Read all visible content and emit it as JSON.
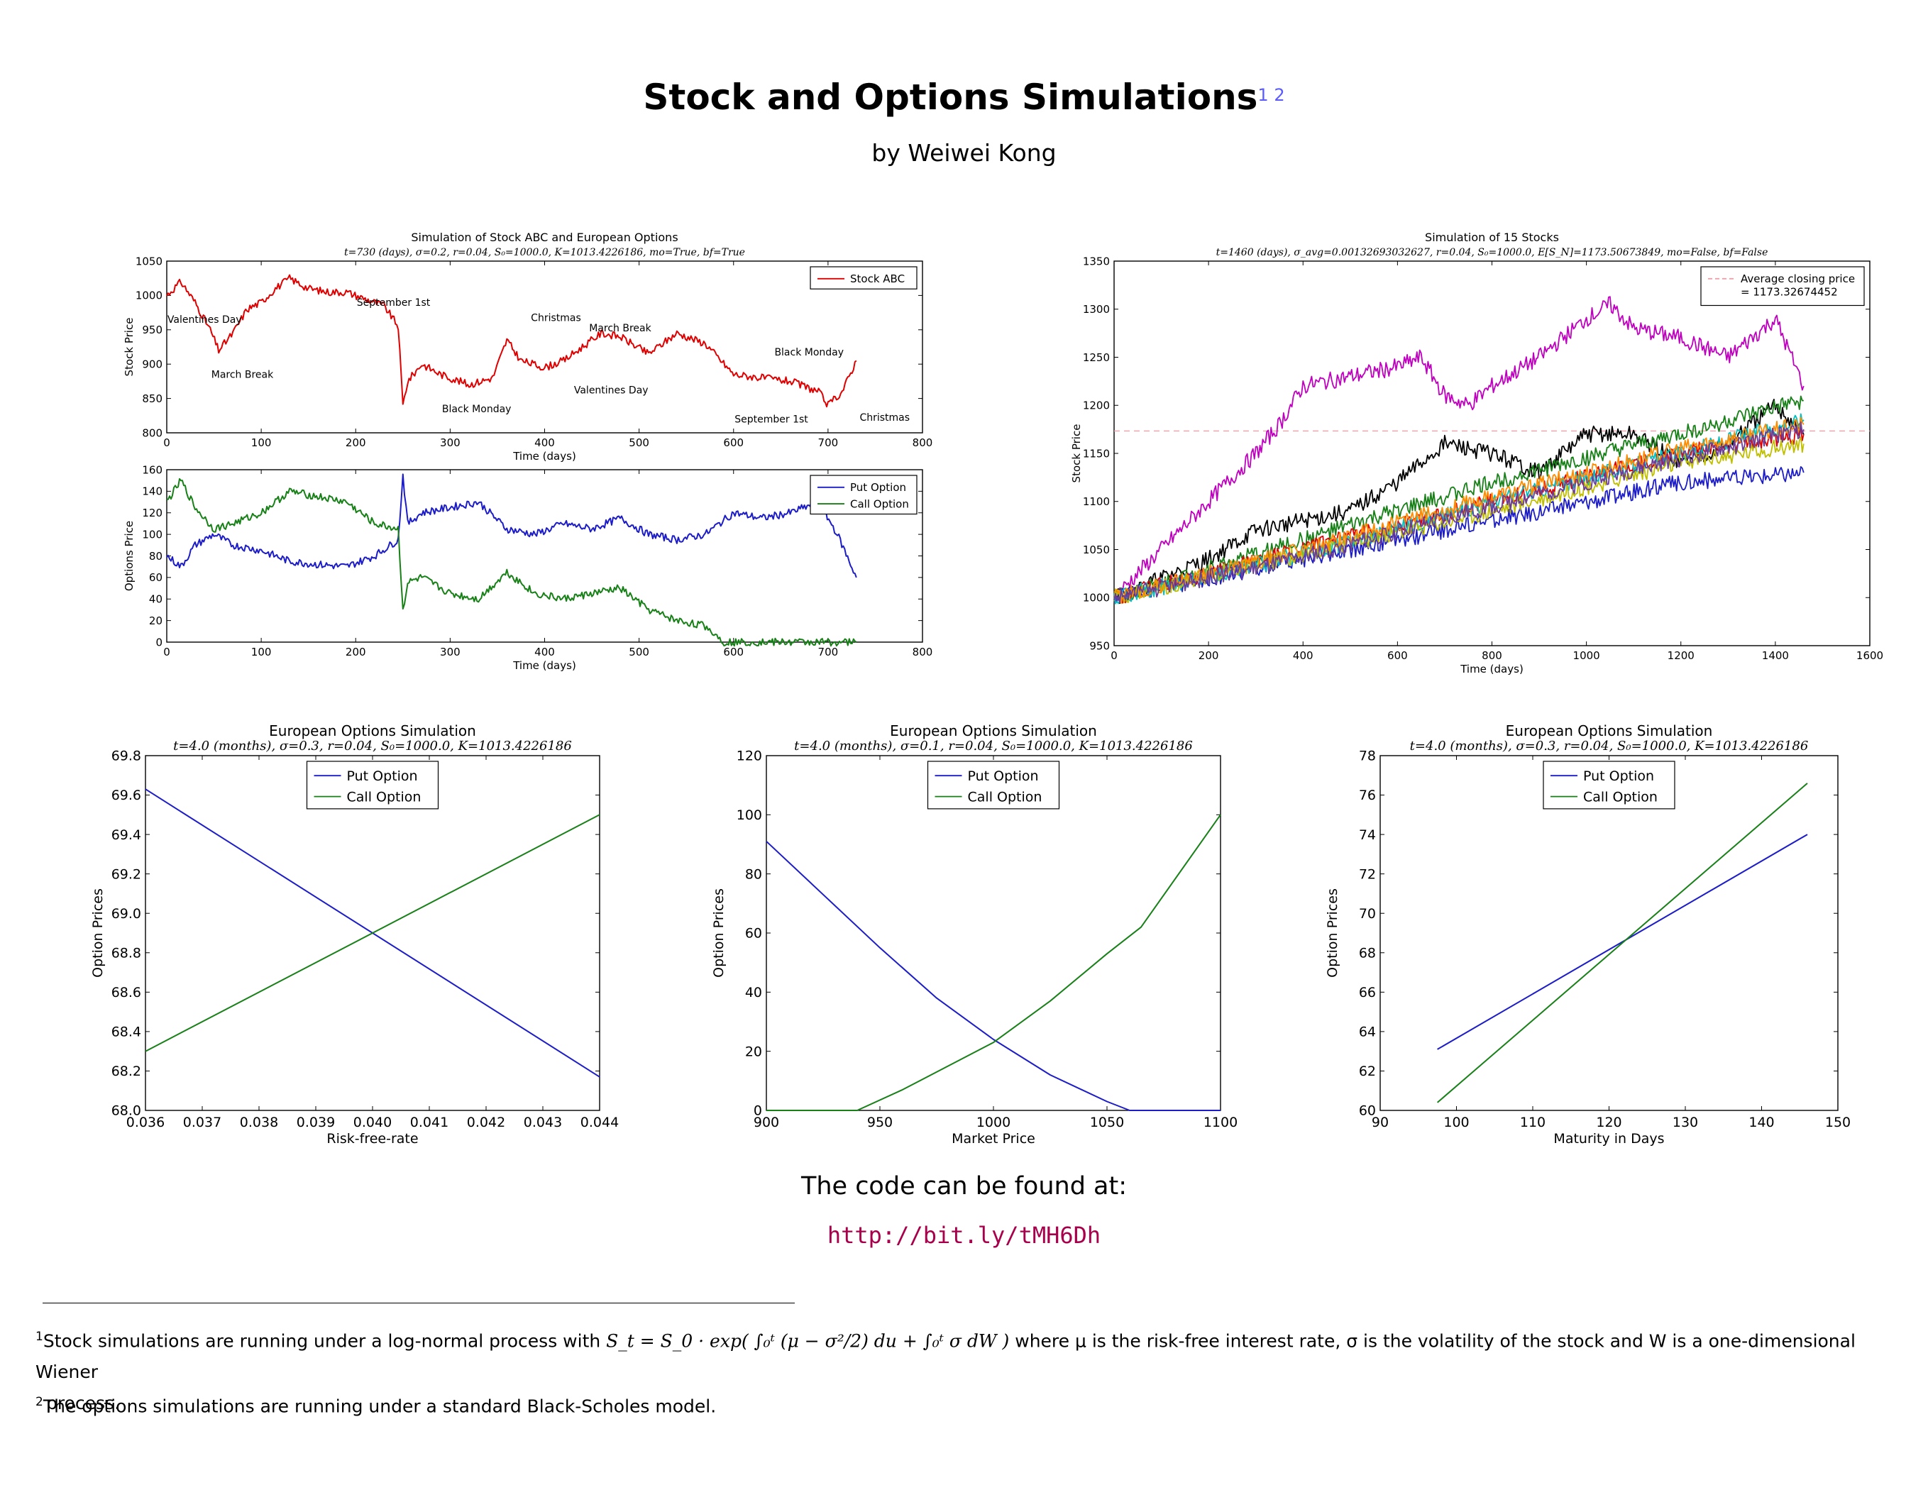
{
  "header": {
    "title": "Stock and Options Simulations",
    "title_footnote_marks": "1 2",
    "author": "by Weiwei Kong"
  },
  "footer": {
    "code_intro": "The code can be found at:",
    "code_url": "http://bit.ly/tMH6Dh",
    "footnote1_mark": "1",
    "footnote1_text_a": "Stock simulations are running under a log-normal process with",
    "footnote1_formula": "S_t = S_0 · exp( ∫₀ᵗ (μ − σ²/2) du + ∫₀ᵗ σ dW )",
    "footnote1_text_b": "where μ is the risk-free interest rate, σ is the volatility of the stock and W is a one-dimensional Wiener",
    "footnote1_text_c": "process.",
    "footnote2_mark": "2",
    "footnote2_text": "The options simulations are running under a standard Black-Scholes model."
  },
  "chart_data": [
    {
      "type": "line",
      "title": "Simulation of Stock ABC and European Options",
      "subtitle": "t=730 (days), σ=0.2, r=0.04, S₀=1000.0, K=1013.4226186, mo=True, bf=True",
      "xlabel": "Time (days)",
      "ylabel": "Stock Price",
      "xlim": [
        0,
        800
      ],
      "ylim": [
        800,
        1050
      ],
      "xticks": [
        "0",
        "100",
        "200",
        "300",
        "400",
        "500",
        "600",
        "700",
        "800"
      ],
      "yticks": [
        "800",
        "850",
        "900",
        "950",
        "1000",
        "1050"
      ],
      "legend_position": "top-right",
      "series": [
        {
          "name": "Stock ABC",
          "color": "#e00000",
          "x": [
            0,
            15,
            30,
            46,
            55,
            70,
            85,
            100,
            115,
            130,
            150,
            170,
            190,
            210,
            230,
            245,
            250,
            255,
            270,
            290,
            320,
            345,
            360,
            375,
            400,
            420,
            440,
            460,
            480,
            510,
            540,
            570,
            600,
            630,
            660,
            690,
            700,
            715,
            730
          ],
          "values": [
            1000,
            1020,
            990,
            950,
            920,
            945,
            980,
            990,
            1010,
            1025,
            1010,
            1005,
            1005,
            995,
            985,
            955,
            840,
            875,
            900,
            885,
            870,
            880,
            935,
            905,
            895,
            905,
            925,
            945,
            940,
            915,
            945,
            930,
            885,
            880,
            875,
            860,
            840,
            860,
            905
          ]
        }
      ],
      "annotations": [
        "Valentines Day",
        "March Break",
        "September 1st",
        "Christmas",
        "March Break",
        "Valentines Day",
        "Black Monday",
        "Black Monday",
        "September 1st",
        "Christmas"
      ]
    },
    {
      "type": "line",
      "xlabel": "Time (days)",
      "ylabel": "Options Price",
      "xlim": [
        0,
        800
      ],
      "ylim": [
        0,
        160
      ],
      "xticks": [
        "0",
        "100",
        "200",
        "300",
        "400",
        "500",
        "600",
        "700",
        "800"
      ],
      "yticks": [
        "0",
        "20",
        "40",
        "60",
        "80",
        "100",
        "120",
        "140",
        "160"
      ],
      "legend_position": "top-right",
      "series": [
        {
          "name": "Put Option",
          "color": "#1c1cc8",
          "x": [
            0,
            15,
            30,
            50,
            70,
            100,
            130,
            160,
            190,
            220,
            245,
            250,
            255,
            270,
            300,
            330,
            360,
            390,
            420,
            450,
            480,
            510,
            540,
            570,
            600,
            630,
            660,
            690,
            710,
            730
          ],
          "values": [
            80,
            70,
            90,
            100,
            90,
            85,
            75,
            72,
            70,
            80,
            95,
            155,
            110,
            120,
            125,
            130,
            105,
            100,
            110,
            105,
            115,
            100,
            95,
            100,
            120,
            115,
            120,
            130,
            100,
            60
          ]
        },
        {
          "name": "Call Option",
          "color": "#178017",
          "x": [
            0,
            15,
            30,
            50,
            70,
            100,
            130,
            160,
            190,
            220,
            245,
            250,
            255,
            270,
            300,
            330,
            360,
            390,
            420,
            450,
            480,
            510,
            540,
            570,
            590,
            610,
            650,
            700,
            730
          ],
          "values": [
            130,
            150,
            125,
            105,
            110,
            120,
            140,
            135,
            130,
            110,
            105,
            30,
            55,
            60,
            45,
            40,
            65,
            45,
            40,
            45,
            50,
            30,
            20,
            15,
            0,
            0,
            0,
            0,
            0
          ]
        }
      ]
    },
    {
      "type": "line",
      "title": "Simulation of 15 Stocks",
      "subtitle": "t=1460 (days), σ_avg=0.00132693032627, r=0.04, S₀=1000.0, E[S_N]=1173.50673849, mo=False, bf=False",
      "xlabel": "Time (days)",
      "ylabel": "Stock Price",
      "xlim": [
        0,
        1600
      ],
      "ylim": [
        950,
        1350
      ],
      "xticks": [
        "0",
        "200",
        "400",
        "600",
        "800",
        "1000",
        "1200",
        "1400",
        "1600"
      ],
      "yticks": [
        "950",
        "1000",
        "1050",
        "1100",
        "1150",
        "1200",
        "1250",
        "1300",
        "1350"
      ],
      "legend_position": "top-right",
      "reference_line": {
        "name": "Average closing price = 1173.32674452",
        "value": 1173.32674452
      },
      "series": [
        {
          "color": "#bf00bf",
          "x": [
            0,
            100,
            200,
            300,
            350,
            400,
            500,
            600,
            650,
            700,
            750,
            800,
            900,
            1000,
            1050,
            1100,
            1200,
            1300,
            1350,
            1400,
            1460
          ],
          "values": [
            1000,
            1050,
            1100,
            1150,
            1180,
            1220,
            1230,
            1240,
            1250,
            1210,
            1200,
            1220,
            1250,
            1290,
            1305,
            1280,
            1270,
            1250,
            1270,
            1290,
            1220
          ]
        },
        {
          "color": "#000000",
          "x": [
            0,
            200,
            300,
            400,
            500,
            600,
            700,
            800,
            900,
            1000,
            1100,
            1200,
            1300,
            1400,
            1460
          ],
          "values": [
            1000,
            1040,
            1070,
            1080,
            1090,
            1120,
            1160,
            1150,
            1130,
            1170,
            1170,
            1140,
            1160,
            1200,
            1170
          ]
        },
        {
          "color": "#178017",
          "x": [
            0,
            400,
            800,
            1200,
            1460
          ],
          "values": [
            1000,
            1060,
            1120,
            1170,
            1205
          ]
        },
        {
          "color": "#e00000",
          "x": [
            0,
            400,
            800,
            1200,
            1460
          ],
          "values": [
            1000,
            1050,
            1100,
            1150,
            1170
          ]
        },
        {
          "color": "#1c1cc8",
          "x": [
            0,
            400,
            800,
            1200,
            1460
          ],
          "values": [
            1000,
            1040,
            1080,
            1120,
            1130
          ]
        },
        {
          "color": "#00bfbf",
          "x": [
            0,
            400,
            800,
            1200,
            1460
          ],
          "values": [
            1000,
            1045,
            1100,
            1150,
            1185
          ]
        },
        {
          "color": "#bfbf00",
          "x": [
            0,
            400,
            800,
            1200,
            1460
          ],
          "values": [
            1000,
            1045,
            1090,
            1140,
            1160
          ]
        },
        {
          "color": "#ff8c00",
          "x": [
            0,
            400,
            800,
            1200,
            1460
          ],
          "values": [
            1000,
            1050,
            1105,
            1155,
            1180
          ]
        },
        {
          "color": "#6a3d9a",
          "x": [
            0,
            400,
            800,
            1200,
            1460
          ],
          "values": [
            1000,
            1042,
            1095,
            1145,
            1175
          ]
        }
      ]
    },
    {
      "type": "line",
      "title": "European Options Simulation",
      "subtitle": "t=4.0 (months), σ=0.3, r=0.04, S₀=1000.0, K=1013.4226186",
      "xlabel": "Risk-free-rate",
      "ylabel": "Option Prices",
      "xlim": [
        0.036,
        0.044
      ],
      "ylim": [
        68.0,
        69.8
      ],
      "xticks": [
        "0.036",
        "0.037",
        "0.038",
        "0.039",
        "0.040",
        "0.041",
        "0.042",
        "0.043",
        "0.044"
      ],
      "yticks": [
        "68.0",
        "68.2",
        "68.4",
        "68.6",
        "68.8",
        "69.0",
        "69.2",
        "69.4",
        "69.6",
        "69.8"
      ],
      "legend_position": "top-center",
      "series": [
        {
          "name": "Put Option",
          "color": "#1c1cc8",
          "x": [
            0.036,
            0.044
          ],
          "values": [
            69.63,
            68.17
          ]
        },
        {
          "name": "Call Option",
          "color": "#178017",
          "x": [
            0.036,
            0.044
          ],
          "values": [
            68.3,
            69.5
          ]
        }
      ]
    },
    {
      "type": "line",
      "title": "European Options Simulation",
      "subtitle": "t=4.0 (months), σ=0.1, r=0.04, S₀=1000.0, K=1013.4226186",
      "xlabel": "Market Price",
      "ylabel": "Option Prices",
      "xlim": [
        900,
        1100
      ],
      "ylim": [
        0,
        120
      ],
      "xticks": [
        "900",
        "950",
        "1000",
        "1050",
        "1100"
      ],
      "yticks": [
        "0",
        "20",
        "40",
        "60",
        "80",
        "100",
        "120"
      ],
      "legend_position": "top-center",
      "series": [
        {
          "name": "Put Option",
          "color": "#1c1cc8",
          "x": [
            900,
            925,
            950,
            975,
            1000,
            1025,
            1050,
            1060,
            1100
          ],
          "values": [
            91,
            73,
            55,
            38,
            24,
            12,
            3,
            0,
            0
          ]
        },
        {
          "name": "Call Option",
          "color": "#178017",
          "x": [
            900,
            940,
            960,
            980,
            1000,
            1025,
            1050,
            1065,
            1100
          ],
          "values": [
            0,
            0,
            7,
            15,
            23,
            37,
            53,
            62,
            100
          ]
        }
      ]
    },
    {
      "type": "line",
      "title": "European Options Simulation",
      "subtitle": "t=4.0 (months), σ=0.3, r=0.04, S₀=1000.0, K=1013.4226186",
      "xlabel": "Maturity in Days",
      "ylabel": "Option Prices",
      "xlim": [
        90,
        150
      ],
      "ylim": [
        60,
        78
      ],
      "xticks": [
        "90",
        "100",
        "110",
        "120",
        "130",
        "140",
        "150"
      ],
      "yticks": [
        "60",
        "62",
        "64",
        "66",
        "68",
        "70",
        "72",
        "74",
        "76",
        "78"
      ],
      "legend_position": "top-center",
      "series": [
        {
          "name": "Put Option",
          "color": "#1c1cc8",
          "x": [
            97.5,
            146
          ],
          "values": [
            63.1,
            74.0
          ]
        },
        {
          "name": "Call Option",
          "color": "#178017",
          "x": [
            97.5,
            146
          ],
          "values": [
            60.4,
            76.6
          ]
        }
      ]
    }
  ]
}
